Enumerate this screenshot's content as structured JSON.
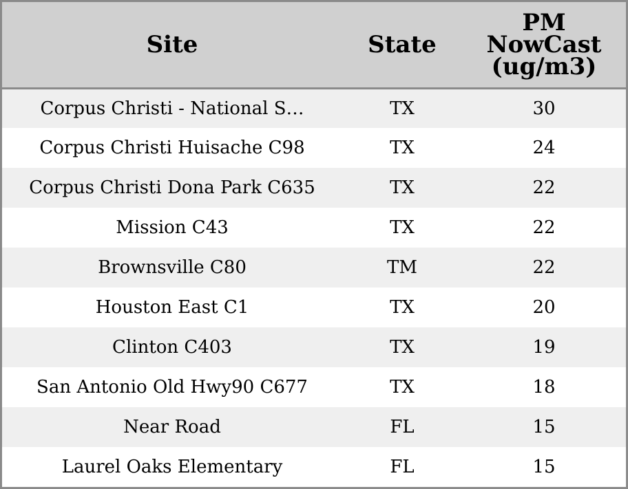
{
  "chart_data": {
    "type": "table",
    "columns": [
      "Site",
      "State",
      "PM NowCast (ug/m3)"
    ],
    "rows": [
      {
        "site": "Corpus Christi - National S…",
        "state": "TX",
        "pm": 30
      },
      {
        "site": "Corpus Christi Huisache C98",
        "state": "TX",
        "pm": 24
      },
      {
        "site": "Corpus Christi Dona Park C635",
        "state": "TX",
        "pm": 22
      },
      {
        "site": "Mission C43",
        "state": "TX",
        "pm": 22
      },
      {
        "site": "Brownsville C80",
        "state": "TM",
        "pm": 22
      },
      {
        "site": "Houston East C1",
        "state": "TX",
        "pm": 20
      },
      {
        "site": "Clinton C403",
        "state": "TX",
        "pm": 19
      },
      {
        "site": "San Antonio Old Hwy90 C677",
        "state": "TX",
        "pm": 18
      },
      {
        "site": "Near Road",
        "state": "FL",
        "pm": 15
      },
      {
        "site": "Laurel Oaks Elementary",
        "state": "FL",
        "pm": 15
      }
    ],
    "header_color": "#d0d0d0",
    "stripe_color": "#efefef",
    "border_color": "#8a8a8a"
  }
}
